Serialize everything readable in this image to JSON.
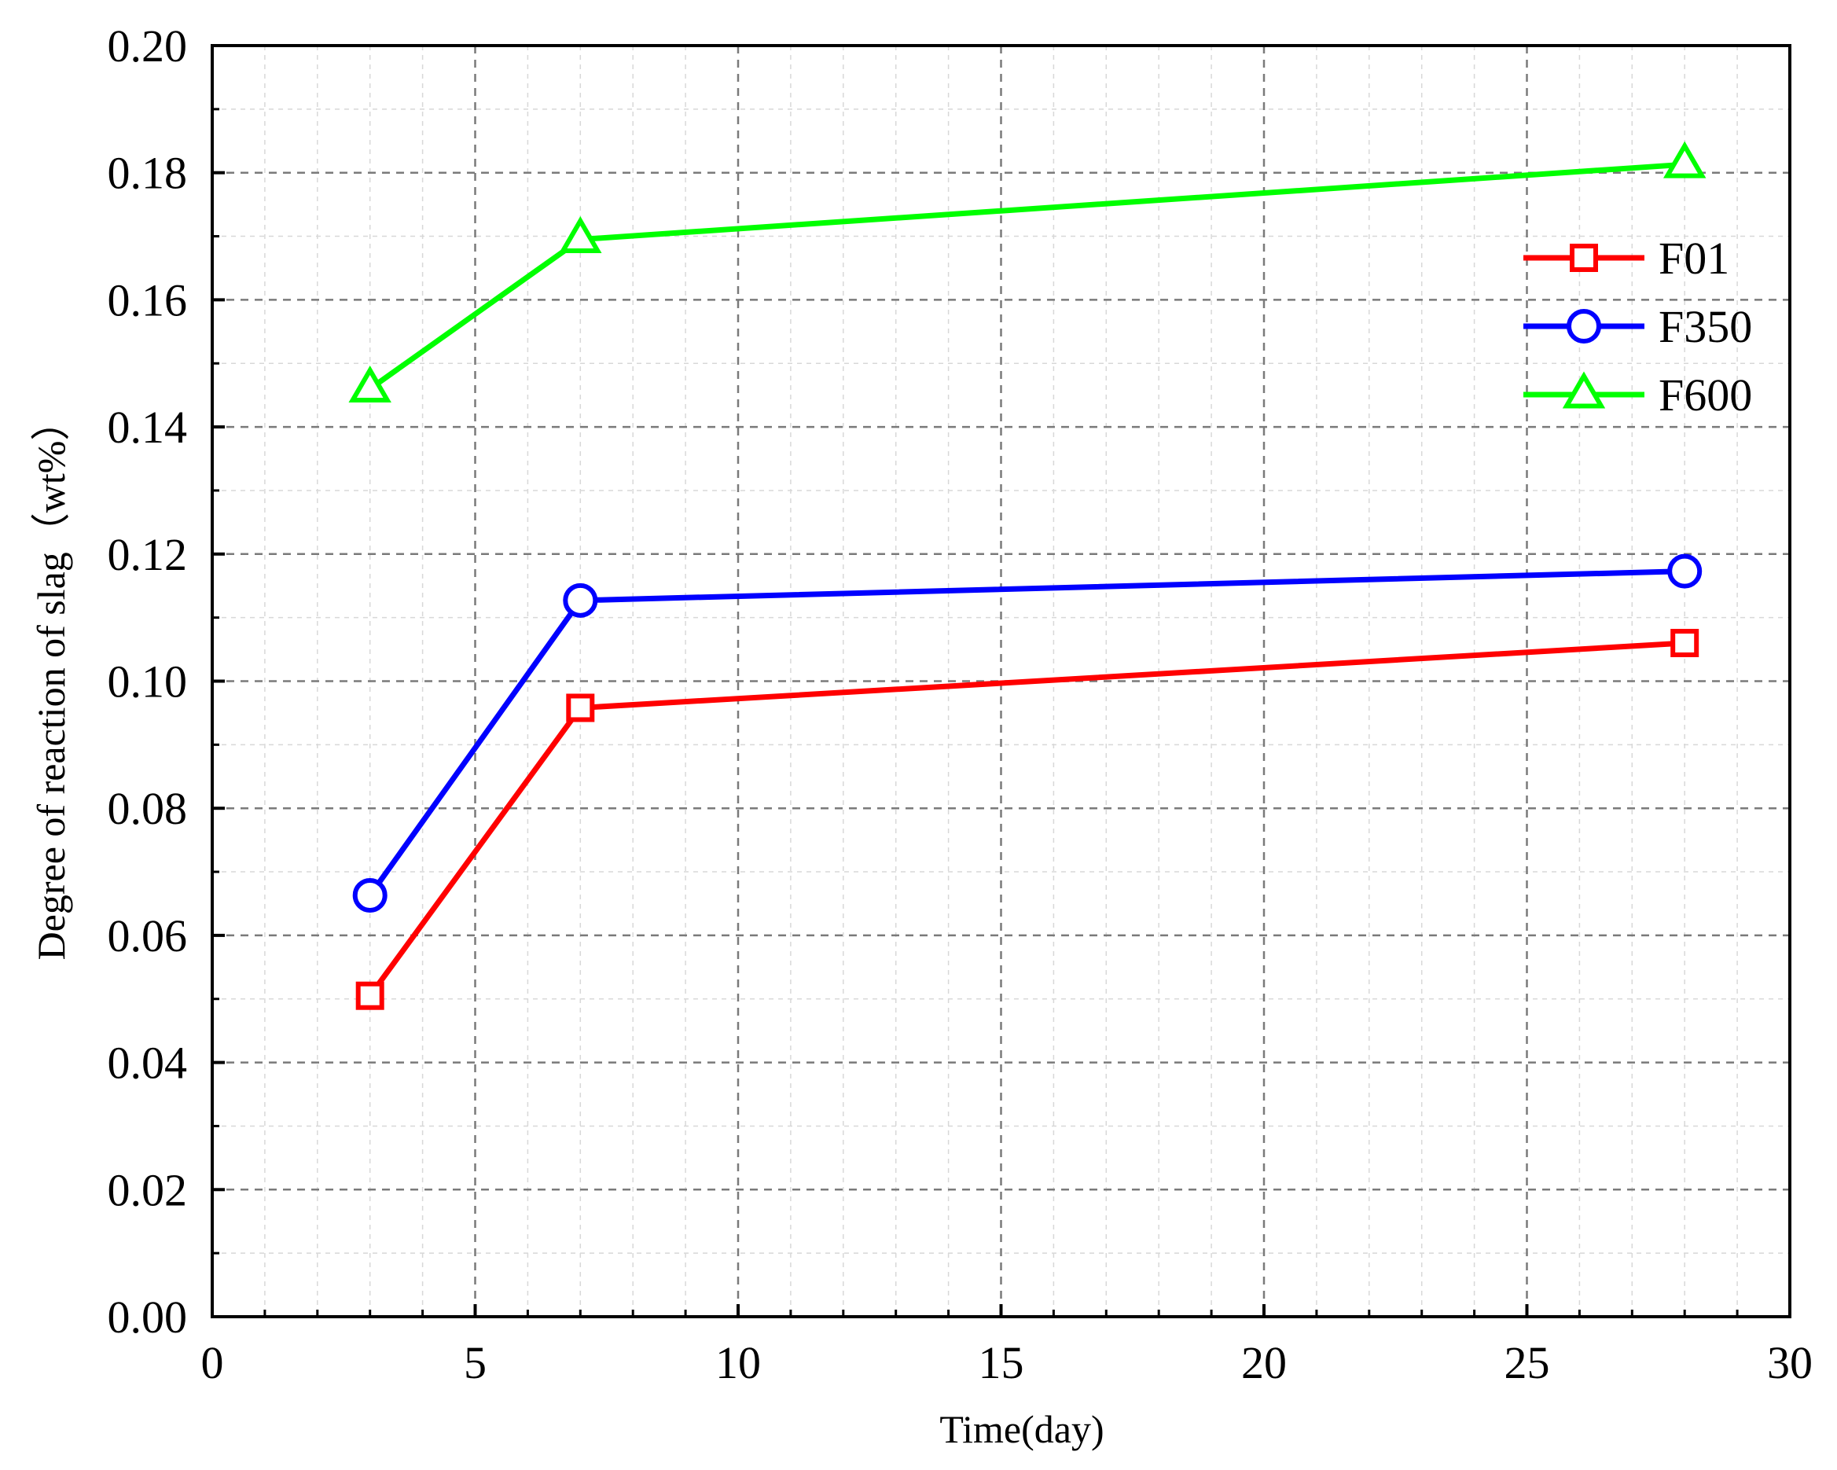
{
  "chart_data": {
    "type": "line",
    "title": "",
    "xlabel": "Time(day)",
    "ylabel": "Degree of reaction of  slag（wt%）",
    "xlim": [
      0,
      30
    ],
    "ylim": [
      0.0,
      0.2
    ],
    "xticks": [
      0,
      5,
      10,
      15,
      20,
      25,
      30
    ],
    "xtick_labels": [
      "0",
      "5",
      "10",
      "15",
      "20",
      "25",
      "30"
    ],
    "yticks": [
      0.0,
      0.02,
      0.04,
      0.06,
      0.08,
      0.1,
      0.12,
      0.14,
      0.16,
      0.18,
      0.2
    ],
    "ytick_labels": [
      "0.00",
      "0.02",
      "0.04",
      "0.06",
      "0.08",
      "0.10",
      "0.12",
      "0.14",
      "0.16",
      "0.18",
      "0.20"
    ],
    "grid": true,
    "legend_position": "top-right",
    "x": [
      3,
      7,
      28
    ],
    "series": [
      {
        "name": "F01",
        "marker": "square",
        "color": "#ff0000",
        "values": [
          0.0505,
          0.0958,
          0.106
        ]
      },
      {
        "name": "F350",
        "marker": "circle",
        "color": "#0000ff",
        "values": [
          0.0663,
          0.1127,
          0.1173
        ]
      },
      {
        "name": "F600",
        "marker": "triangle",
        "color": "#00ff00",
        "values": [
          0.146,
          0.1695,
          0.1813
        ]
      }
    ]
  }
}
